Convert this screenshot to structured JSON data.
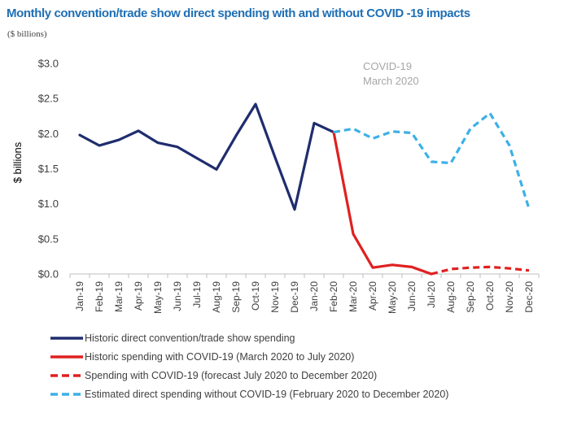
{
  "title": "Monthly convention/trade show direct spending with and without COVID    -19 impacts",
  "subtitle": "($ billions)",
  "colors": {
    "historic": "#1f2d6e",
    "covid_actual": "#e02020",
    "covid_forecast": "#e02020",
    "without_covid": "#3cb0e6",
    "axis": "#bfbfbf",
    "text": "#404040",
    "annotation": "#a6a6a6"
  },
  "chart_data": {
    "type": "line",
    "title": "Monthly convention/trade show direct spending with and without COVID    -19 impacts",
    "subtitle": "($ billions)",
    "xlabel": "",
    "ylabel": "$ billions",
    "ylim": [
      0,
      3.0
    ],
    "yticks": [
      0,
      0.5,
      1.0,
      1.5,
      2.0,
      2.5,
      3.0
    ],
    "ytick_labels": [
      "$0.0",
      "$0.5",
      "$1.0",
      "$1.5",
      "$2.0",
      "$2.5",
      "$3.0"
    ],
    "grid": false,
    "legend_position": "bottom",
    "categories": [
      "Jan-19",
      "Feb-19",
      "Mar-19",
      "Apr-19",
      "May-19",
      "Jun-19",
      "Jul-19",
      "Aug-19",
      "Sep-19",
      "Oct-19",
      "Nov-19",
      "Dec-19",
      "Jan-20",
      "Feb-20",
      "Mar-20",
      "Apr-20",
      "May-20",
      "Jun-20",
      "Jul-20",
      "Aug-20",
      "Sep-20",
      "Oct-20",
      "Nov-20",
      "Dec-20"
    ],
    "annotation": {
      "lines": [
        "COVID-19",
        "March 2020"
      ]
    },
    "series": [
      {
        "name": "Historic direct convention/trade show spending",
        "style": "solid",
        "color": "#1f2d6e",
        "values": [
          1.98,
          1.83,
          1.91,
          2.04,
          1.87,
          1.81,
          1.65,
          1.49,
          1.97,
          2.42,
          1.66,
          0.92,
          2.15,
          2.02,
          null,
          null,
          null,
          null,
          null,
          null,
          null,
          null,
          null,
          null
        ]
      },
      {
        "name": "Historic spending with COVID-19 (March 2020 to July 2020)",
        "style": "solid",
        "color": "#e02020",
        "values": [
          null,
          null,
          null,
          null,
          null,
          null,
          null,
          null,
          null,
          null,
          null,
          null,
          null,
          2.02,
          0.57,
          0.09,
          0.13,
          0.1,
          0.0,
          null,
          null,
          null,
          null,
          null
        ]
      },
      {
        "name": "Spending with COVID-19 (forecast July 2020 to December 2020)",
        "style": "dashed",
        "color": "#e02020",
        "values": [
          null,
          null,
          null,
          null,
          null,
          null,
          null,
          null,
          null,
          null,
          null,
          null,
          null,
          null,
          null,
          null,
          null,
          null,
          0.0,
          0.07,
          0.09,
          0.1,
          0.08,
          0.05
        ]
      },
      {
        "name": "Estimated direct spending without COVID-19 (February 2020 to December 2020)",
        "style": "dashed",
        "color": "#3cb0e6",
        "values": [
          null,
          null,
          null,
          null,
          null,
          null,
          null,
          null,
          null,
          null,
          null,
          null,
          null,
          2.02,
          2.07,
          1.93,
          2.03,
          2.01,
          1.6,
          1.58,
          2.07,
          2.29,
          1.83,
          0.93
        ]
      }
    ]
  },
  "legend": [
    {
      "label": "Historic direct convention/trade show spending",
      "color": "#1f2d6e",
      "dashed": false
    },
    {
      "label": "Historic spending with COVID-19 (March 2020 to July 2020)",
      "color": "#e02020",
      "dashed": false
    },
    {
      "label": "Spending with COVID-19 (forecast July 2020 to December 2020)",
      "color": "#e02020",
      "dashed": true
    },
    {
      "label": "Estimated direct spending without COVID-19 (February 2020 to December 2020)",
      "color": "#3cb0e6",
      "dashed": true
    }
  ]
}
